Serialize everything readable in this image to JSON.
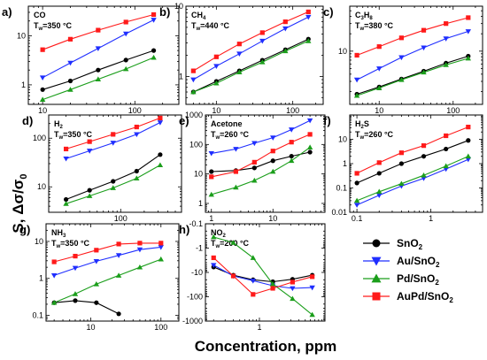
{
  "figure": {
    "xlabel": "Concentration, ppm",
    "ylabel_main": "S, Δσ/σ",
    "ylabel_sub": "0"
  },
  "series_styles": [
    {
      "name": "SnO2",
      "label_main": "SnO",
      "label_sub": "2",
      "color": "#000000",
      "marker": "circle"
    },
    {
      "name": "Au/SnO2",
      "label_main": "Au/SnO",
      "label_sub": "2",
      "color": "#1f2eff",
      "marker": "triangle-down"
    },
    {
      "name": "Pd/SnO2",
      "label_main": "Pd/SnO",
      "label_sub": "2",
      "color": "#1b9e1b",
      "marker": "triangle-up"
    },
    {
      "name": "AuPd/SnO2",
      "label_main": "AuPd/SnO",
      "label_sub": "2",
      "color": "#ff1a1a",
      "marker": "square"
    }
  ],
  "chart_data": [
    {
      "panel": "a)",
      "gas_main": "CO",
      "gas_sub": "",
      "temp_main": "T",
      "temp_sub": "w",
      "temp_value": "=350 °C",
      "type": "line",
      "xscale": "log",
      "yscale": "log",
      "xlim": [
        7,
        300
      ],
      "ylim": [
        0.4,
        40
      ],
      "xticks": [
        10,
        100
      ],
      "xticklabels": [
        "10",
        "100"
      ],
      "yticks": [
        1,
        10
      ],
      "yticklabels": [
        "1",
        "10"
      ],
      "x": [
        10,
        20,
        40,
        80,
        160
      ],
      "series": [
        {
          "name": "SnO2",
          "values": [
            0.8,
            1.2,
            2.0,
            3.2,
            5.0
          ]
        },
        {
          "name": "Au/SnO2",
          "values": [
            1.4,
            2.8,
            5.5,
            11,
            21
          ]
        },
        {
          "name": "Pd/SnO2",
          "values": [
            0.5,
            0.8,
            1.3,
            2.1,
            3.6
          ]
        },
        {
          "name": "AuPd/SnO2",
          "values": [
            5.2,
            8.5,
            13,
            19,
            27
          ]
        }
      ]
    },
    {
      "panel": "b)",
      "gas_main": "CH",
      "gas_sub": "4",
      "temp_main": "T",
      "temp_sub": "w",
      "temp_value": "=440 °C",
      "type": "line",
      "xscale": "log",
      "yscale": "log",
      "xlim": [
        4,
        250
      ],
      "ylim": [
        0.4,
        10
      ],
      "xticks": [
        10,
        100
      ],
      "xticklabels": [
        "10",
        "100"
      ],
      "yticks": [
        1,
        10
      ],
      "yticklabels": [
        "1",
        "10"
      ],
      "x": [
        5,
        10,
        20,
        40,
        80,
        160
      ],
      "series": [
        {
          "name": "SnO2",
          "values": [
            0.6,
            0.85,
            1.2,
            1.7,
            2.4,
            3.4
          ]
        },
        {
          "name": "Au/SnO2",
          "values": [
            0.9,
            1.4,
            2.1,
            3.2,
            4.8,
            7.0
          ]
        },
        {
          "name": "Pd/SnO2",
          "values": [
            0.6,
            0.8,
            1.15,
            1.6,
            2.3,
            3.2
          ]
        },
        {
          "name": "AuPd/SnO2",
          "values": [
            1.2,
            1.9,
            2.9,
            4.2,
            6.0,
            8.3
          ]
        }
      ]
    },
    {
      "panel": "c)",
      "gas_main": "C",
      "gas_sub": "3",
      "gas_main2": "H",
      "gas_sub2": "8",
      "temp_main": "T",
      "temp_sub": "w",
      "temp_value": "=380 °C",
      "type": "line",
      "xscale": "log",
      "yscale": "log",
      "xlim": [
        4,
        250
      ],
      "ylim": [
        1.2,
        60
      ],
      "xticks": [
        10,
        100
      ],
      "xticklabels": [
        "10",
        "100"
      ],
      "yticks": [
        10
      ],
      "yticklabels": [
        "10"
      ],
      "x": [
        5,
        10,
        20,
        40,
        80,
        160
      ],
      "series": [
        {
          "name": "SnO2",
          "values": [
            1.8,
            2.4,
            3.3,
            4.5,
            6.2,
            8.2
          ]
        },
        {
          "name": "Au/SnO2",
          "values": [
            3.2,
            5.0,
            7.8,
            11.5,
            16.5,
            22
          ]
        },
        {
          "name": "Pd/SnO2",
          "values": [
            1.7,
            2.3,
            3.2,
            4.3,
            5.8,
            7.5
          ]
        },
        {
          "name": "AuPd/SnO2",
          "values": [
            8.5,
            12,
            17,
            23,
            30,
            38
          ]
        }
      ]
    },
    {
      "panel": "d)",
      "gas_main": "H",
      "gas_sub": "2",
      "temp_main": "T",
      "temp_sub": "w",
      "temp_value": "=350 °C",
      "type": "line",
      "xscale": "log",
      "yscale": "log",
      "xlim": [
        12,
        600
      ],
      "ylim": [
        3,
        300
      ],
      "xticks": [
        100
      ],
      "xticklabels": [
        "100"
      ],
      "yticks": [
        10,
        100
      ],
      "yticklabels": [
        "10",
        "100"
      ],
      "x": [
        20,
        40,
        80,
        160,
        320
      ],
      "series": [
        {
          "name": "SnO2",
          "values": [
            5.5,
            8.5,
            13,
            21,
            46
          ]
        },
        {
          "name": "Au/SnO2",
          "values": [
            38,
            55,
            80,
            120,
            210
          ]
        },
        {
          "name": "Pd/SnO2",
          "values": [
            4.5,
            6.5,
            9.5,
            15,
            28
          ]
        },
        {
          "name": "AuPd/SnO2",
          "values": [
            60,
            85,
            120,
            170,
            260
          ]
        }
      ]
    },
    {
      "panel": "e)",
      "gas_main": "Acetone",
      "gas_sub": "",
      "temp_main": "T",
      "temp_sub": "w",
      "temp_value": "=260 °C",
      "type": "line",
      "xscale": "log",
      "yscale": "log",
      "xlim": [
        0.8,
        70
      ],
      "ylim": [
        0.5,
        1000
      ],
      "xticks": [
        1,
        10
      ],
      "xticklabels": [
        "1",
        "10"
      ],
      "yticks": [
        1,
        10,
        100,
        1000
      ],
      "yticklabels": [
        "1",
        "10",
        "100",
        "1000"
      ],
      "x": [
        1,
        2.5,
        5,
        10,
        20,
        40
      ],
      "series": [
        {
          "name": "SnO2",
          "values": [
            12,
            13,
            16,
            28,
            40,
            55
          ]
        },
        {
          "name": "Au/SnO2",
          "values": [
            50,
            70,
            110,
            170,
            320,
            650
          ]
        },
        {
          "name": "Pd/SnO2",
          "values": [
            2.0,
            3.5,
            6.0,
            12,
            28,
            80
          ]
        },
        {
          "name": "AuPd/SnO2",
          "values": [
            8,
            12,
            25,
            60,
            120,
            220
          ]
        }
      ]
    },
    {
      "panel": "f)",
      "gas_main": "H",
      "gas_sub": "2",
      "gas_main2": "S",
      "gas_sub2": "",
      "temp_main": "T",
      "temp_sub": "w",
      "temp_value": "=260 °C",
      "type": "line",
      "xscale": "log",
      "yscale": "log",
      "xlim": [
        0.08,
        5
      ],
      "ylim": [
        0.01,
        100
      ],
      "xticks": [
        0.1,
        1
      ],
      "xticklabels": [
        "0.1",
        "1"
      ],
      "yticks": [
        0.01,
        0.1,
        1,
        10
      ],
      "yticklabels": [
        "0.01",
        "0.1",
        "1",
        "10"
      ],
      "x": [
        0.1,
        0.2,
        0.4,
        0.8,
        1.6,
        3.2
      ],
      "series": [
        {
          "name": "SnO2",
          "values": [
            0.16,
            0.4,
            1.0,
            2.0,
            4.0,
            9.0
          ]
        },
        {
          "name": "Au/SnO2",
          "values": [
            0.02,
            0.05,
            0.12,
            0.25,
            0.6,
            1.5
          ]
        },
        {
          "name": "Pd/SnO2",
          "values": [
            0.03,
            0.07,
            0.15,
            0.33,
            0.8,
            2.0
          ]
        },
        {
          "name": "AuPd/SnO2",
          "values": [
            0.4,
            1.1,
            2.8,
            5.5,
            14,
            32
          ]
        }
      ]
    },
    {
      "panel": "g)",
      "gas_main": "NH",
      "gas_sub": "3",
      "temp_main": "T",
      "temp_sub": "w",
      "temp_value": "=350 °C",
      "type": "line",
      "xscale": "log",
      "yscale": "log",
      "xlim": [
        2.3,
        180
      ],
      "ylim": [
        0.07,
        30
      ],
      "xticks": [
        10,
        100
      ],
      "xticklabels": [
        "10",
        "100"
      ],
      "yticks": [
        0.1,
        1,
        10
      ],
      "yticklabels": [
        "0.1",
        "1",
        "10"
      ],
      "x": [
        3,
        6,
        12,
        25,
        50,
        100
      ],
      "series": [
        {
          "name": "SnO2",
          "values": [
            0.22,
            0.25,
            0.22,
            0.11,
            null,
            null
          ]
        },
        {
          "name": "Au/SnO2",
          "values": [
            1.2,
            1.9,
            2.9,
            4.2,
            6.0,
            7.0
          ]
        },
        {
          "name": "Pd/SnO2",
          "values": [
            0.22,
            0.38,
            0.7,
            1.2,
            2.0,
            3.3
          ]
        },
        {
          "name": "AuPd/SnO2",
          "values": [
            2.8,
            4.0,
            5.8,
            8.5,
            9.0,
            9.0
          ]
        }
      ]
    },
    {
      "panel": "h)",
      "gas_main": "NO",
      "gas_sub": "2",
      "temp_main": "T",
      "temp_sub": "w",
      "temp_value": "=200 °C",
      "type": "line",
      "xscale": "log",
      "yscale": "log",
      "xlim": [
        0.15,
        10
      ],
      "ylim": [
        -1000,
        -0.1
      ],
      "ynote": "reciprocal log axis, tick labels negative",
      "xticks": [
        1
      ],
      "xticklabels": [
        "1"
      ],
      "yticks": [
        -0.1,
        -1,
        -10,
        -100,
        -1000
      ],
      "yticklabels": [
        "-0.1",
        "-1",
        "-10",
        "-100",
        "-1000"
      ],
      "x": [
        0.2,
        0.4,
        0.8,
        1.6,
        3.2,
        6.4
      ],
      "series": [
        {
          "name": "SnO2",
          "values": [
            -6,
            -13,
            -20,
            -24,
            -19,
            -13
          ]
        },
        {
          "name": "Au/SnO2",
          "values": [
            -5,
            -14,
            -22,
            -35,
            -45,
            -42
          ]
        },
        {
          "name": "Pd/SnO2",
          "values": [
            -0.35,
            -0.6,
            -2.5,
            -30,
            -120,
            -550
          ]
        },
        {
          "name": "AuPd/SnO2",
          "values": [
            -2.5,
            -14,
            -80,
            -45,
            -25,
            -15
          ]
        }
      ]
    }
  ]
}
